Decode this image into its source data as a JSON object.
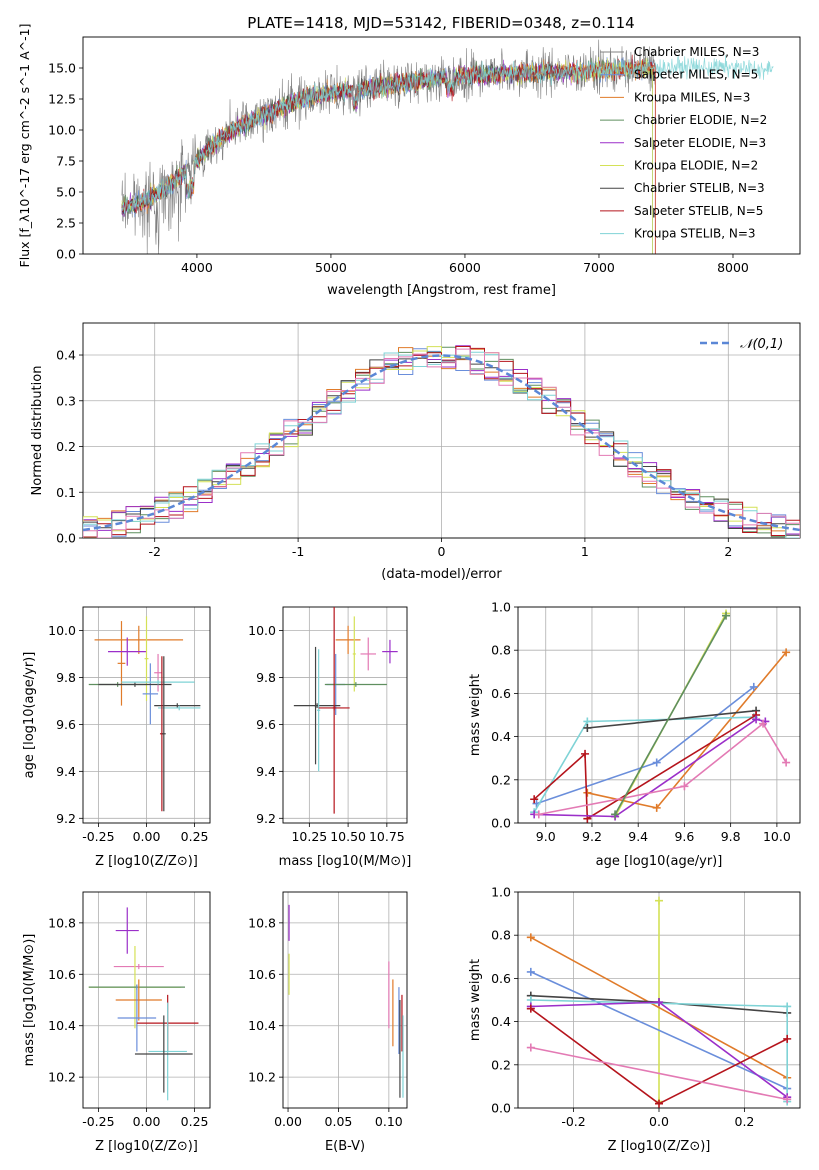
{
  "title": "PLATE=1418, MJD=53142, FIBERID=0348, z=0.114",
  "colors": {
    "Chabrier MILES": "#808080",
    "Salpeter MILES": "#6a8edb",
    "Kroupa MILES": "#e07b2a",
    "Chabrier ELODIE": "#5f8f5f",
    "Salpeter ELODIE": "#9b2fc9",
    "Kroupa ELODIE": "#d4e157",
    "Chabrier STELIB": "#444444",
    "Salpeter STELIB": "#b5141c",
    "Kroupa STELIB": "#7fd3d6",
    "pink": "#e37ab4",
    "normal_curve": "#5b87d6"
  },
  "chart_data": [
    {
      "id": "spectrum",
      "type": "line",
      "xlabel": "wavelength [Angstrom, rest frame]",
      "ylabel": "Flux [f_λ10^-17 erg cm^-2 s^-1 A^-1]",
      "xlim": [
        3150,
        8500
      ],
      "ylim": [
        0,
        17.5
      ],
      "xticks": [
        4000,
        5000,
        6000,
        7000,
        8000
      ],
      "yticks": [
        0.0,
        2.5,
        5.0,
        7.5,
        10.0,
        12.5,
        15.0
      ],
      "grid": false,
      "legend_position": "right",
      "series": [
        {
          "name": "Chabrier MILES, N_SSP=3",
          "color": "#808080"
        },
        {
          "name": "Salpeter MILES, N_SSP=5",
          "color": "#6a8edb"
        },
        {
          "name": "Kroupa MILES, N_SSP=3",
          "color": "#e07b2a"
        },
        {
          "name": "Chabrier ELODIE, N_SSP=2",
          "color": "#5f8f5f"
        },
        {
          "name": "Salpeter ELODIE, N_SSP=3",
          "color": "#9b2fc9"
        },
        {
          "name": "Kroupa ELODIE, N_SSP=2",
          "color": "#d4e157"
        },
        {
          "name": "Chabrier STELIB, N_SSP=3",
          "color": "#444444"
        },
        {
          "name": "Salpeter STELIB, N_SSP=5",
          "color": "#b5141c"
        },
        {
          "name": "Kroupa STELIB, N_SSP=3",
          "color": "#7fd3d6"
        }
      ],
      "continuum": {
        "x": [
          3450,
          3600,
          3800,
          4000,
          4200,
          4500,
          4800,
          5000,
          5300,
          5600,
          6000,
          6400,
          6800,
          7200,
          7600,
          8000,
          8300
        ],
        "y": [
          3.8,
          4.2,
          5.6,
          7.5,
          9.6,
          11.2,
          12.6,
          13.0,
          13.4,
          13.9,
          14.4,
          14.6,
          14.7,
          14.9,
          15.1,
          15.0,
          14.8
        ]
      }
    },
    {
      "id": "residuals",
      "type": "line",
      "xlabel": "(data-model)/error",
      "ylabel": "Normed distribution",
      "xlim": [
        -2.5,
        2.5
      ],
      "ylim": [
        0,
        0.47
      ],
      "xticks": [
        -2,
        -1,
        0,
        1,
        2
      ],
      "yticks": [
        0.0,
        0.1,
        0.2,
        0.3,
        0.4
      ],
      "grid": true,
      "legend": "𝒩(0,1)",
      "legend_position": "top-right",
      "bin_width": 0.1
    },
    {
      "id": "age_vs_Z",
      "type": "scatter",
      "xlabel": "Z [log10(Z/Z⊙)]",
      "ylabel": "age  [log10(age/yr)]",
      "xlim": [
        -0.33,
        0.33
      ],
      "ylim": [
        9.18,
        10.1
      ],
      "xticks": [
        -0.25,
        0.0,
        0.25
      ],
      "yticks": [
        9.2,
        9.4,
        9.6,
        9.8,
        10.0
      ],
      "grid": true,
      "points": [
        {
          "color": "#e07b2a",
          "x": -0.04,
          "xerr": 0.23,
          "y": 9.96,
          "yerr": 0.06
        },
        {
          "color": "#e07b2a",
          "x": -0.13,
          "xerr": 0.02,
          "y": 9.86,
          "yerr": 0.18
        },
        {
          "color": "#9b2fc9",
          "x": -0.1,
          "xerr": 0.1,
          "y": 9.91,
          "yerr": 0.06
        },
        {
          "color": "#d4e157",
          "x": 0.0,
          "xerr": 0.01,
          "y": 9.88,
          "yerr": 0.18
        },
        {
          "color": "#6a8edb",
          "x": 0.02,
          "xerr": 0.04,
          "y": 9.73,
          "yerr": 0.13
        },
        {
          "color": "#e37ab4",
          "x": 0.06,
          "xerr": 0.02,
          "y": 9.82,
          "yerr": 0.08
        },
        {
          "color": "#5f8f5f",
          "x": -0.15,
          "xerr": 0.15,
          "y": 9.77,
          "yerr": 0.01
        },
        {
          "color": "#444444",
          "x": -0.06,
          "xerr": 0.19,
          "y": 9.77,
          "yerr": 0.01
        },
        {
          "color": "#7fd3d6",
          "x": 0.06,
          "xerr": 0.19,
          "y": 9.78,
          "yerr": 0.01
        },
        {
          "color": "#444444",
          "x": 0.16,
          "xerr": 0.12,
          "y": 9.68,
          "yerr": 0.01
        },
        {
          "color": "#7fd3d6",
          "x": 0.17,
          "xerr": 0.11,
          "y": 9.67,
          "yerr": 0.01
        },
        {
          "color": "#b5141c",
          "x": 0.08,
          "xerr": 0.01,
          "y": 9.56,
          "yerr": 0.33
        },
        {
          "color": "#444444",
          "x": 0.09,
          "xerr": 0.01,
          "y": 9.56,
          "yerr": 0.33
        }
      ]
    },
    {
      "id": "age_vs_mass",
      "type": "scatter",
      "xlabel": "mass [log10(M/M⊙)]",
      "ylabel": "",
      "xlim": [
        10.08,
        10.88
      ],
      "ylim": [
        9.18,
        10.1
      ],
      "xticks": [
        10.25,
        10.5,
        10.75
      ],
      "yticks": [
        9.2,
        9.4,
        9.6,
        9.8,
        10.0
      ],
      "grid": true,
      "points": [
        {
          "color": "#e07b2a",
          "x": 10.5,
          "xerr": 0.08,
          "y": 9.96,
          "yerr": 0.06
        },
        {
          "color": "#d4e157",
          "x": 10.54,
          "xerr": 0.01,
          "y": 9.9,
          "yerr": 0.16
        },
        {
          "color": "#e37ab4",
          "x": 10.63,
          "xerr": 0.05,
          "y": 9.9,
          "yerr": 0.07
        },
        {
          "color": "#9b2fc9",
          "x": 10.77,
          "xerr": 0.05,
          "y": 9.91,
          "yerr": 0.05
        },
        {
          "color": "#6a8edb",
          "x": 10.42,
          "xerr": 0.06,
          "y": 9.77,
          "yerr": 0.13
        },
        {
          "color": "#5f8f5f",
          "x": 10.55,
          "xerr": 0.2,
          "y": 9.77,
          "yerr": 0.01
        },
        {
          "color": "#444444",
          "x": 10.29,
          "xerr": 0.01,
          "y": 9.68,
          "yerr": 0.25
        },
        {
          "color": "#444444",
          "x": 10.3,
          "xerr": 0.15,
          "y": 9.68,
          "yerr": 0.01
        },
        {
          "color": "#7fd3d6",
          "x": 10.31,
          "xerr": 0.01,
          "y": 9.66,
          "yerr": 0.26
        },
        {
          "color": "#b5141c",
          "x": 10.41,
          "xerr": 0.1,
          "y": 9.67,
          "yerr": 0.01
        },
        {
          "color": "#b5141c",
          "x": 10.41,
          "xerr": 0.01,
          "y": 9.67,
          "yerr": 0.45
        }
      ]
    },
    {
      "id": "weight_vs_age",
      "type": "line",
      "xlabel": "age  [log10(age/yr)]",
      "ylabel": "mass weight",
      "xlim": [
        8.88,
        10.1
      ],
      "ylim": [
        0,
        1.0
      ],
      "xticks": [
        9.0,
        9.2,
        9.4,
        9.6,
        9.8,
        10.0
      ],
      "yticks": [
        0.0,
        0.2,
        0.4,
        0.6,
        0.8,
        1.0
      ],
      "grid": true,
      "series": [
        {
          "color": "#d4e157",
          "x": [
            9.3,
            9.78
          ],
          "y": [
            0.03,
            0.97
          ]
        },
        {
          "color": "#e07b2a",
          "x": [
            9.18,
            9.48,
            10.04
          ],
          "y": [
            0.14,
            0.07,
            0.79
          ]
        },
        {
          "color": "#6a8edb",
          "x": [
            8.96,
            9.48,
            9.9
          ],
          "y": [
            0.09,
            0.28,
            0.63
          ]
        },
        {
          "color": "#7fd3d6",
          "x": [
            8.95,
            9.18,
            9.9
          ],
          "y": [
            0.05,
            0.47,
            0.49
          ]
        },
        {
          "color": "#444444",
          "x": [
            9.18,
            9.91
          ],
          "y": [
            0.44,
            0.52
          ]
        },
        {
          "color": "#b5141c",
          "x": [
            8.95,
            9.17,
            9.18,
            9.91
          ],
          "y": [
            0.11,
            0.32,
            0.02,
            0.5
          ]
        },
        {
          "color": "#9b2fc9",
          "x": [
            8.95,
            9.3,
            9.91,
            9.95
          ],
          "y": [
            0.04,
            0.03,
            0.48,
            0.47
          ]
        },
        {
          "color": "#e37ab4",
          "x": [
            8.97,
            9.6,
            9.94,
            10.04
          ],
          "y": [
            0.04,
            0.17,
            0.46,
            0.28
          ]
        },
        {
          "color": "#5f8f5f",
          "x": [
            9.3,
            9.78
          ],
          "y": [
            0.04,
            0.96
          ]
        }
      ]
    },
    {
      "id": "mass_vs_Z",
      "type": "scatter",
      "xlabel": "Z [log10(Z/Z⊙)]",
      "ylabel": "mass [log10(M/M⊙)]",
      "xlim": [
        -0.33,
        0.33
      ],
      "ylim": [
        10.08,
        10.92
      ],
      "xticks": [
        -0.25,
        0.0,
        0.25
      ],
      "yticks": [
        10.2,
        10.4,
        10.6,
        10.8
      ],
      "grid": true,
      "points": [
        {
          "color": "#9b2fc9",
          "x": -0.1,
          "xerr": 0.06,
          "y": 10.77,
          "yerr": 0.09
        },
        {
          "color": "#e37ab4",
          "x": -0.04,
          "xerr": 0.13,
          "y": 10.63,
          "yerr": 0.01
        },
        {
          "color": "#d4e157",
          "x": -0.06,
          "xerr": 0.24,
          "y": 10.55,
          "yerr": 0.16
        },
        {
          "color": "#5f8f5f",
          "x": -0.05,
          "xerr": 0.25,
          "y": 10.55,
          "yerr": 0.01
        },
        {
          "color": "#e07b2a",
          "x": -0.04,
          "xerr": 0.12,
          "y": 10.5,
          "yerr": 0.08
        },
        {
          "color": "#6a8edb",
          "x": -0.05,
          "xerr": 0.1,
          "y": 10.43,
          "yerr": 0.13
        },
        {
          "color": "#b5141c",
          "x": 0.11,
          "xerr": 0.16,
          "y": 10.41,
          "yerr": 0.11
        },
        {
          "color": "#7fd3d6",
          "x": 0.11,
          "xerr": 0.1,
          "y": 10.3,
          "yerr": 0.19
        },
        {
          "color": "#444444",
          "x": 0.09,
          "xerr": 0.15,
          "y": 10.29,
          "yerr": 0.15
        }
      ]
    },
    {
      "id": "mass_vs_ebv",
      "type": "scatter",
      "xlabel": "E(B-V)",
      "ylabel": "",
      "xlim": [
        -0.005,
        0.118
      ],
      "ylim": [
        10.08,
        10.92
      ],
      "xticks": [
        0.0,
        0.05,
        0.1
      ],
      "yticks": [
        10.2,
        10.4,
        10.6,
        10.8
      ],
      "grid": true,
      "points": [
        {
          "color": "#9b2fc9",
          "x": 0.001,
          "xerr": 0.0,
          "y": 10.8,
          "yerr": 0.07
        },
        {
          "color": "#d4e157",
          "x": 0.001,
          "xerr": 0.0,
          "y": 10.6,
          "yerr": 0.08
        },
        {
          "color": "#e37ab4",
          "x": 0.1,
          "xerr": 0.0,
          "y": 10.52,
          "yerr": 0.13
        },
        {
          "color": "#e07b2a",
          "x": 0.104,
          "xerr": 0.0,
          "y": 10.45,
          "yerr": 0.13
        },
        {
          "color": "#6a8edb",
          "x": 0.11,
          "xerr": 0.0,
          "y": 10.42,
          "yerr": 0.13
        },
        {
          "color": "#444444",
          "x": 0.111,
          "xerr": 0.0,
          "y": 10.31,
          "yerr": 0.19
        },
        {
          "color": "#b5141c",
          "x": 0.113,
          "xerr": 0.0,
          "y": 10.41,
          "yerr": 0.11
        },
        {
          "color": "#7fd3d6",
          "x": 0.114,
          "xerr": 0.0,
          "y": 10.28,
          "yerr": 0.16
        }
      ]
    },
    {
      "id": "weight_vs_Z",
      "type": "line",
      "xlabel": "Z [log10(Z/Z⊙)]",
      "ylabel": "mass weight",
      "xlim": [
        -0.33,
        0.33
      ],
      "ylim": [
        0,
        1.0
      ],
      "xticks": [
        -0.2,
        0.0,
        0.2
      ],
      "yticks": [
        0.0,
        0.2,
        0.4,
        0.6,
        0.8,
        1.0
      ],
      "grid": true,
      "series": [
        {
          "color": "#d4e157",
          "x": [
            0.0,
            0.0
          ],
          "y": [
            0.03,
            0.96
          ]
        },
        {
          "color": "#e07b2a",
          "x": [
            -0.3,
            0.3
          ],
          "y": [
            0.79,
            0.14
          ]
        },
        {
          "color": "#6a8edb",
          "x": [
            -0.3,
            0.3
          ],
          "y": [
            0.63,
            0.09
          ]
        },
        {
          "color": "#444444",
          "x": [
            -0.3,
            0.0,
            0.3
          ],
          "y": [
            0.52,
            0.49,
            0.44
          ]
        },
        {
          "color": "#7fd3d6",
          "x": [
            -0.3,
            0.3,
            0.3
          ],
          "y": [
            0.5,
            0.47,
            0.03
          ]
        },
        {
          "color": "#9b2fc9",
          "x": [
            -0.3,
            0.0,
            0.3
          ],
          "y": [
            0.47,
            0.49,
            0.05
          ]
        },
        {
          "color": "#b5141c",
          "x": [
            -0.3,
            0.0,
            0.3
          ],
          "y": [
            0.46,
            0.02,
            0.32
          ]
        },
        {
          "color": "#e37ab4",
          "x": [
            -0.3,
            0.3
          ],
          "y": [
            0.28,
            0.04
          ]
        }
      ]
    }
  ]
}
